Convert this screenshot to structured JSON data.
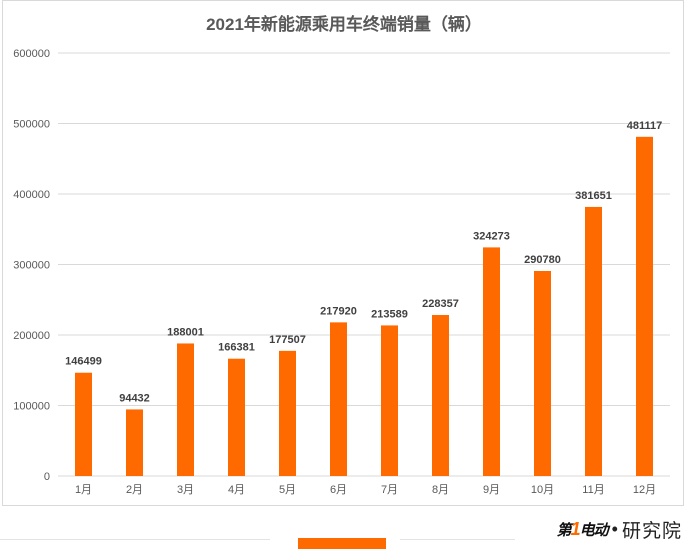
{
  "chart_data": {
    "type": "bar",
    "title": "2021年新能源乘用车终端销量（辆）",
    "categories": [
      "1月",
      "2月",
      "3月",
      "4月",
      "5月",
      "6月",
      "7月",
      "8月",
      "9月",
      "10月",
      "11月",
      "12月"
    ],
    "values": [
      146499,
      94432,
      188001,
      166381,
      177507,
      217920,
      213589,
      228357,
      324273,
      290780,
      381651,
      481117
    ],
    "ylim": [
      0,
      600000
    ],
    "yticks": [
      0,
      100000,
      200000,
      300000,
      400000,
      500000,
      600000
    ],
    "xlabel": "",
    "ylabel": "",
    "grid": true,
    "bar_color": "#ff6a00"
  },
  "brand": {
    "logo_prefix": "第",
    "logo_one": "1",
    "logo_suffix": "电动",
    "separator": "•",
    "name": "研究院"
  }
}
